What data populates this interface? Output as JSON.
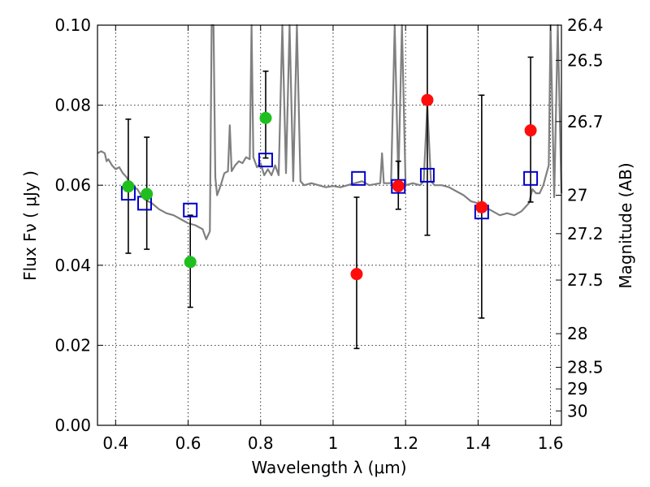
{
  "chart_data": {
    "type": "scatter",
    "xlabel": "Wavelength  λ (μm)",
    "ylabel": "Flux  Fν  ( μJy )",
    "ylabel_right": "Magnitude (AB)",
    "xlim": [
      0.35,
      1.63
    ],
    "ylim": [
      0.0,
      0.1
    ],
    "grid": true,
    "x_ticks": [
      0.4,
      0.6,
      0.8,
      1.0,
      1.2,
      1.4,
      1.6
    ],
    "x_tick_labels": [
      "0.4",
      "0.6",
      "0.8",
      "1",
      "1.2",
      "1.4",
      "1.6"
    ],
    "y_ticks": [
      0.0,
      0.02,
      0.04,
      0.06,
      0.08,
      0.1
    ],
    "y_tick_labels": [
      "0.00",
      "0.02",
      "0.04",
      "0.06",
      "0.08",
      "0.10"
    ],
    "right_ticks": [
      {
        "label": "26.4",
        "flux": 0.1
      },
      {
        "label": "26.5",
        "flux": 0.0912
      },
      {
        "label": "26.7",
        "flux": 0.0759
      },
      {
        "label": "27",
        "flux": 0.0575
      },
      {
        "label": "27.2",
        "flux": 0.0479
      },
      {
        "label": "27.5",
        "flux": 0.0363
      },
      {
        "label": "28",
        "flux": 0.0229
      },
      {
        "label": "28.5",
        "flux": 0.0145
      },
      {
        "label": "29",
        "flux": 0.0091
      },
      {
        "label": "30",
        "flux": 0.0036
      }
    ],
    "series": [
      {
        "name": "model_spectrum",
        "kind": "line",
        "color": "#808080",
        "points": [
          [
            0.35,
            0.068
          ],
          [
            0.36,
            0.0685
          ],
          [
            0.37,
            0.068
          ],
          [
            0.375,
            0.066
          ],
          [
            0.38,
            0.0665
          ],
          [
            0.39,
            0.065
          ],
          [
            0.4,
            0.064
          ],
          [
            0.41,
            0.0645
          ],
          [
            0.42,
            0.063
          ],
          [
            0.43,
            0.062
          ],
          [
            0.44,
            0.0605
          ],
          [
            0.45,
            0.0595
          ],
          [
            0.46,
            0.059
          ],
          [
            0.47,
            0.0575
          ],
          [
            0.48,
            0.0565
          ],
          [
            0.5,
            0.0555
          ],
          [
            0.52,
            0.054
          ],
          [
            0.54,
            0.053
          ],
          [
            0.56,
            0.0525
          ],
          [
            0.58,
            0.0515
          ],
          [
            0.6,
            0.0505
          ],
          [
            0.62,
            0.05
          ],
          [
            0.64,
            0.049
          ],
          [
            0.65,
            0.0465
          ],
          [
            0.66,
            0.0485
          ],
          [
            0.665,
            0.1
          ],
          [
            0.67,
            0.1
          ],
          [
            0.675,
            0.062
          ],
          [
            0.68,
            0.0575
          ],
          [
            0.69,
            0.06
          ],
          [
            0.7,
            0.063
          ],
          [
            0.71,
            0.0635
          ],
          [
            0.715,
            0.075
          ],
          [
            0.72,
            0.0635
          ],
          [
            0.73,
            0.065
          ],
          [
            0.74,
            0.066
          ],
          [
            0.75,
            0.0655
          ],
          [
            0.76,
            0.067
          ],
          [
            0.77,
            0.0665
          ],
          [
            0.775,
            0.1
          ],
          [
            0.78,
            0.067
          ],
          [
            0.79,
            0.0645
          ],
          [
            0.8,
            0.0655
          ],
          [
            0.81,
            0.0625
          ],
          [
            0.82,
            0.064
          ],
          [
            0.83,
            0.0625
          ],
          [
            0.84,
            0.065
          ],
          [
            0.85,
            0.0625
          ],
          [
            0.86,
            0.1
          ],
          [
            0.87,
            0.063
          ],
          [
            0.88,
            0.1
          ],
          [
            0.89,
            0.061
          ],
          [
            0.9,
            0.1
          ],
          [
            0.91,
            0.061
          ],
          [
            0.92,
            0.06
          ],
          [
            0.94,
            0.0605
          ],
          [
            0.96,
            0.06
          ],
          [
            0.98,
            0.0595
          ],
          [
            1.0,
            0.0598
          ],
          [
            1.02,
            0.0595
          ],
          [
            1.04,
            0.06
          ],
          [
            1.06,
            0.0605
          ],
          [
            1.08,
            0.061
          ],
          [
            1.1,
            0.06
          ],
          [
            1.13,
            0.0605
          ],
          [
            1.135,
            0.068
          ],
          [
            1.14,
            0.0605
          ],
          [
            1.16,
            0.0605
          ],
          [
            1.17,
            0.1
          ],
          [
            1.18,
            0.061
          ],
          [
            1.19,
            0.1
          ],
          [
            1.2,
            0.06
          ],
          [
            1.22,
            0.0605
          ],
          [
            1.24,
            0.06
          ],
          [
            1.25,
            0.061
          ],
          [
            1.26,
            0.08
          ],
          [
            1.27,
            0.061
          ],
          [
            1.28,
            0.06
          ],
          [
            1.3,
            0.06
          ],
          [
            1.32,
            0.0595
          ],
          [
            1.34,
            0.0585
          ],
          [
            1.36,
            0.0575
          ],
          [
            1.38,
            0.056
          ],
          [
            1.4,
            0.0555
          ],
          [
            1.42,
            0.0545
          ],
          [
            1.44,
            0.0535
          ],
          [
            1.46,
            0.0525
          ],
          [
            1.48,
            0.053
          ],
          [
            1.5,
            0.0525
          ],
          [
            1.52,
            0.0535
          ],
          [
            1.54,
            0.0555
          ],
          [
            1.55,
            0.059
          ],
          [
            1.56,
            0.058
          ],
          [
            1.57,
            0.058
          ],
          [
            1.58,
            0.06
          ],
          [
            1.595,
            0.065
          ],
          [
            1.6,
            0.1
          ],
          [
            1.61,
            0.057
          ],
          [
            1.62,
            0.1
          ],
          [
            1.63,
            0.058
          ]
        ]
      },
      {
        "name": "observed_green",
        "kind": "points",
        "marker": "circle",
        "color": "#1fbf1f",
        "points": [
          {
            "x": 0.435,
            "y": 0.0597,
            "err_low": 0.043,
            "err_high": 0.0765
          },
          {
            "x": 0.486,
            "y": 0.0578,
            "err_low": 0.044,
            "err_high": 0.072
          },
          {
            "x": 0.606,
            "y": 0.0408,
            "err_low": 0.0295,
            "err_high": 0.0525
          },
          {
            "x": 0.814,
            "y": 0.0768,
            "err_low": 0.0668,
            "err_high": 0.0885
          }
        ]
      },
      {
        "name": "observed_red",
        "kind": "points",
        "marker": "circle",
        "color": "#ff0d0d",
        "points": [
          {
            "x": 1.065,
            "y": 0.0378,
            "err_low": 0.0192,
            "err_high": 0.057
          },
          {
            "x": 1.18,
            "y": 0.0598,
            "err_low": 0.054,
            "err_high": 0.066
          },
          {
            "x": 1.26,
            "y": 0.0813,
            "err_low": 0.0475,
            "err_high": 0.1
          },
          {
            "x": 1.41,
            "y": 0.0545,
            "err_low": 0.0268,
            "err_high": 0.0825
          },
          {
            "x": 1.545,
            "y": 0.0737,
            "err_low": 0.0558,
            "err_high": 0.092
          }
        ]
      },
      {
        "name": "model_photometry",
        "kind": "points",
        "marker": "square",
        "color": "#0000cc",
        "points": [
          {
            "x": 0.435,
            "y": 0.058
          },
          {
            "x": 0.48,
            "y": 0.0555
          },
          {
            "x": 0.606,
            "y": 0.0538
          },
          {
            "x": 0.814,
            "y": 0.0663
          },
          {
            "x": 1.07,
            "y": 0.0617
          },
          {
            "x": 1.18,
            "y": 0.0597
          },
          {
            "x": 1.26,
            "y": 0.0625
          },
          {
            "x": 1.41,
            "y": 0.0533
          },
          {
            "x": 1.545,
            "y": 0.0617
          }
        ]
      }
    ]
  }
}
